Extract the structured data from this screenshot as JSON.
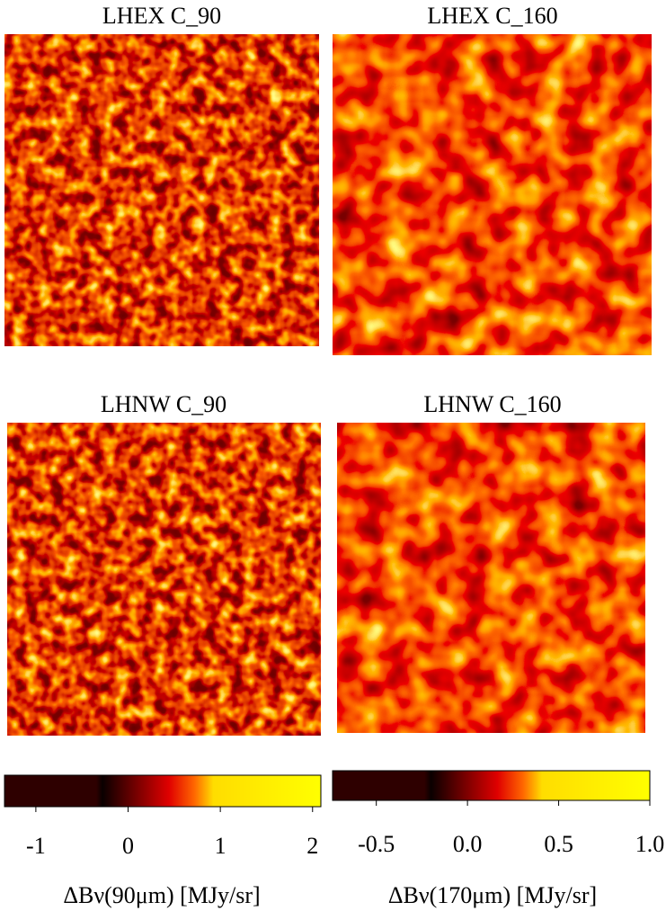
{
  "panels": [
    {
      "title": "LHEX C_90"
    },
    {
      "title": "LHEX C_160"
    },
    {
      "title": "LHNW C_90"
    },
    {
      "title": "LHNW C_160"
    }
  ],
  "chart_data": [
    {
      "type": "colorbar",
      "xlabel": "ΔBν(90μm) [MJy/sr]",
      "xlim": [
        -1.34,
        2.09
      ],
      "xticks": [
        -1,
        0,
        1,
        2
      ]
    },
    {
      "type": "colorbar",
      "xlabel": "ΔBν(170μm) [MJy/sr]",
      "xlim": [
        -0.74,
        1.0
      ],
      "xticks": [
        -0.5,
        {
          "value": 0,
          "label": "0.0"
        },
        0.5,
        {
          "value": 1,
          "label": "1.0"
        }
      ]
    }
  ]
}
